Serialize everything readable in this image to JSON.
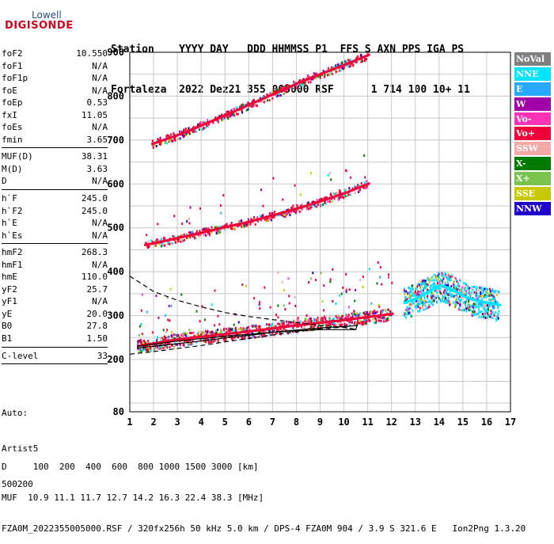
{
  "logo": {
    "top": "Lowell",
    "main": "DIGISONDE"
  },
  "header": {
    "line1": "Station    YYYY DAY   DDD HHMMSS P1  FFS S AXN PPS IGA PS",
    "line2": "Fortaleza  2022 Dez21 355 005000 RSF      1 714 100 10+ 11"
  },
  "params": [
    {
      "name": "foF2",
      "value": "10.550"
    },
    {
      "name": "foF1",
      "value": "N/A"
    },
    {
      "name": "foF1p",
      "value": "N/A"
    },
    {
      "name": "foE",
      "value": "N/A"
    },
    {
      "name": "foEp",
      "value": "0.53"
    },
    {
      "name": "fxI",
      "value": "11.05"
    },
    {
      "name": "foEs",
      "value": "N/A"
    },
    {
      "name": "fmin",
      "value": "3.65"
    },
    {
      "sep": true
    },
    {
      "name": "MUF(D)",
      "value": "38.31"
    },
    {
      "name": "M(D)",
      "value": "3.63"
    },
    {
      "name": "D",
      "value": "N/A"
    },
    {
      "sep": true
    },
    {
      "name": "h`F",
      "value": "245.0"
    },
    {
      "name": "h`F2",
      "value": "245.0"
    },
    {
      "name": "h`E",
      "value": "N/A"
    },
    {
      "name": "h`Es",
      "value": "N/A"
    },
    {
      "sep": true
    },
    {
      "name": "hmF2",
      "value": "268.3"
    },
    {
      "name": "hmF1",
      "value": "N/A"
    },
    {
      "name": "hmE",
      "value": "110.0"
    },
    {
      "name": "yF2",
      "value": "25.7"
    },
    {
      "name": "yF1",
      "value": "N/A"
    },
    {
      "name": "yE",
      "value": "20.0"
    },
    {
      "name": "B0",
      "value": "27.8"
    },
    {
      "name": "B1",
      "value": "1.50"
    },
    {
      "sep": true
    },
    {
      "name": "C-level",
      "value": "33"
    },
    {
      "sep": true
    }
  ],
  "auto": {
    "line1": "Auto:",
    "line2": "Artist5",
    "line3": "500200"
  },
  "legend": [
    {
      "label": "NoVal",
      "color": "#808080"
    },
    {
      "label": "NNE",
      "color": "#00e5ff"
    },
    {
      "label": "E",
      "color": "#29a8ff"
    },
    {
      "label": "W",
      "color": "#a000a8"
    },
    {
      "label": "Vo-",
      "color": "#ff33b5"
    },
    {
      "label": "Vo+",
      "color": "#f00038"
    },
    {
      "label": "SSW",
      "color": "#f5a8a8"
    },
    {
      "label": "X-",
      "color": "#007a00"
    },
    {
      "label": "X+",
      "color": "#7ac24e"
    },
    {
      "label": "SSE",
      "color": "#c8c800"
    },
    {
      "label": "NNW",
      "color": "#2200cc"
    }
  ],
  "footer": {
    "line1": "D     100  200  400  600  800 1000 1500 3000 [km]",
    "line2": "MUF  10.9 11.1 11.7 12.7 14.2 16.3 22.4 38.3 [MHz]",
    "line3": "FZA0M_2022355005000.RSF / 320fx256h 50 kHz 5.0 km / DPS-4 FZA0M 904 / 3.9 S 321.6 E   Ion2Png 1.3.20"
  },
  "chart_data": {
    "type": "scatter",
    "xlabel": "",
    "ylabel": "",
    "xlim": [
      1,
      17
    ],
    "ylim": [
      80,
      900
    ],
    "x_ticks": [
      1,
      2,
      3,
      4,
      5,
      6,
      7,
      8,
      9,
      10,
      11,
      12,
      13,
      14,
      15,
      16,
      17
    ],
    "y_ticks": [
      80,
      200,
      300,
      400,
      500,
      600,
      700,
      800,
      900
    ],
    "grid": true,
    "series": [
      {
        "name": "F2 trace (1st hop)",
        "color": "#f00038",
        "points": [
          [
            1.3,
            232
          ],
          [
            2,
            238
          ],
          [
            3,
            247
          ],
          [
            4,
            253
          ],
          [
            5,
            259
          ],
          [
            6,
            265
          ],
          [
            7,
            272
          ],
          [
            8,
            279
          ],
          [
            9,
            285
          ],
          [
            10,
            291
          ],
          [
            11,
            298
          ],
          [
            12,
            305
          ]
        ]
      },
      {
        "name": "F2 trace (2nd hop)",
        "color": "#f00038",
        "points": [
          [
            1.6,
            462
          ],
          [
            2,
            466
          ],
          [
            3,
            478
          ],
          [
            4,
            490
          ],
          [
            5,
            503
          ],
          [
            6,
            515
          ],
          [
            7,
            530
          ],
          [
            8,
            545
          ],
          [
            9,
            562
          ],
          [
            10,
            580
          ],
          [
            11,
            602
          ]
        ]
      },
      {
        "name": "F2 trace (3rd hop)",
        "color": "#f00038",
        "points": [
          [
            1.9,
            692
          ],
          [
            2,
            694
          ],
          [
            3,
            713
          ],
          [
            4,
            735
          ],
          [
            5,
            758
          ],
          [
            6,
            782
          ],
          [
            7,
            806
          ],
          [
            8,
            830
          ],
          [
            9,
            852
          ],
          [
            10,
            873
          ],
          [
            11,
            895
          ]
        ]
      },
      {
        "name": "Spread F region",
        "color": "#00e5ff",
        "points": [
          [
            12.5,
            330
          ],
          [
            13,
            340
          ],
          [
            13.5,
            355
          ],
          [
            14,
            370
          ],
          [
            14.5,
            360
          ],
          [
            15,
            345
          ],
          [
            15.5,
            335
          ],
          [
            16,
            330
          ],
          [
            16.5,
            325
          ]
        ]
      }
    ],
    "profile_lines": [
      {
        "name": "solid profile",
        "style": "solid",
        "points": [
          [
            1.3,
            226
          ],
          [
            2,
            230
          ],
          [
            3,
            236
          ],
          [
            4,
            242
          ],
          [
            5,
            249
          ],
          [
            6,
            255
          ],
          [
            7,
            262
          ],
          [
            8,
            267
          ],
          [
            9,
            272
          ],
          [
            10,
            275
          ],
          [
            10.55,
            277
          ],
          [
            10.5,
            268
          ],
          [
            9,
            268
          ],
          [
            7,
            262
          ],
          [
            5,
            253
          ],
          [
            3,
            242
          ],
          [
            1.3,
            230
          ]
        ]
      },
      {
        "name": "dashed profile upper",
        "style": "dashed",
        "points": [
          [
            1,
            390
          ],
          [
            2,
            355
          ],
          [
            3,
            335
          ],
          [
            4,
            320
          ],
          [
            5,
            307
          ],
          [
            6,
            298
          ],
          [
            7,
            291
          ],
          [
            8,
            284
          ],
          [
            9,
            278
          ],
          [
            10,
            273
          ],
          [
            10.55,
            268
          ]
        ]
      },
      {
        "name": "dashed profile lower",
        "style": "dashed",
        "points": [
          [
            1,
            212
          ],
          [
            2,
            218
          ],
          [
            3,
            225
          ],
          [
            4,
            232
          ],
          [
            5,
            240
          ],
          [
            6,
            248
          ],
          [
            7,
            256
          ],
          [
            8,
            263
          ],
          [
            9,
            270
          ],
          [
            10,
            274
          ],
          [
            10.55,
            268
          ]
        ]
      }
    ]
  }
}
